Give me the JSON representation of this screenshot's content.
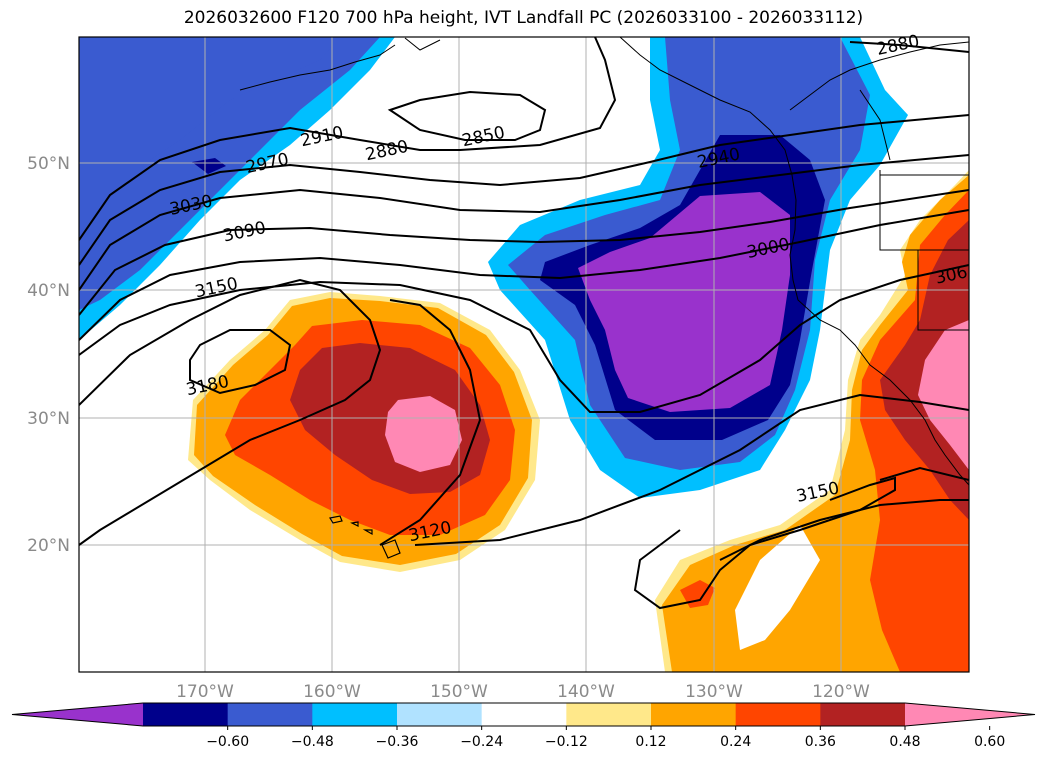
{
  "title": "2026032600 F120 700 hPa height, IVT Landfall PC (2026033100 - 2026033112)",
  "map": {
    "projection": "PlateCarree",
    "lon_range": [
      -180,
      -110
    ],
    "lat_range": [
      10,
      60
    ],
    "lat_labels": [
      "50°N",
      "40°N",
      "30°N",
      "20°N"
    ],
    "lon_labels": [
      "170°W",
      "160°W",
      "150°W",
      "140°W",
      "130°W",
      "120°W"
    ],
    "gridlines": true
  },
  "contour_labels": [
    {
      "value": "2880",
      "lon": -155.8,
      "lat": 51.1
    },
    {
      "value": "2850",
      "lon": -148.2,
      "lat": 52.2
    },
    {
      "value": "2910",
      "lon": -160.9,
      "lat": 52.2
    },
    {
      "value": "2970",
      "lon": -165.2,
      "lat": 50.1
    },
    {
      "value": "3030",
      "lon": -171.2,
      "lat": 46.8
    },
    {
      "value": "3090",
      "lon": -167.0,
      "lat": 44.7
    },
    {
      "value": "3150",
      "lon": -169.2,
      "lat": 40.3
    },
    {
      "value": "3180",
      "lon": -169.9,
      "lat": 32.6
    },
    {
      "value": "3120",
      "lon": -152.4,
      "lat": 21.1
    },
    {
      "value": "2940",
      "lon": -129.7,
      "lat": 50.5
    },
    {
      "value": "3000",
      "lon": -125.8,
      "lat": 43.4
    },
    {
      "value": "3150",
      "lon": -121.9,
      "lat": 24.2
    },
    {
      "value": "2880",
      "lon": -115.6,
      "lat": 59.4
    },
    {
      "value": "306",
      "lon": -111.4,
      "lat": 41.3
    }
  ],
  "colorbar": {
    "levels": [
      -0.72,
      -0.6,
      -0.48,
      -0.36,
      -0.24,
      -0.12,
      0.12,
      0.24,
      0.36,
      0.48,
      0.6,
      0.72
    ],
    "tick_labels": [
      "−0.60",
      "−0.48",
      "−0.36",
      "−0.24",
      "−0.12",
      "0.12",
      "0.24",
      "0.36",
      "0.48",
      "0.60"
    ],
    "colors": [
      "#9932cc",
      "#00008b",
      "#3a5bd0",
      "#00bfff",
      "#b0e2ff",
      "#ffffff",
      "#ffe88a",
      "#ffa500",
      "#ff4500",
      "#b22222",
      "#ff88b4"
    ],
    "extend": "both"
  }
}
